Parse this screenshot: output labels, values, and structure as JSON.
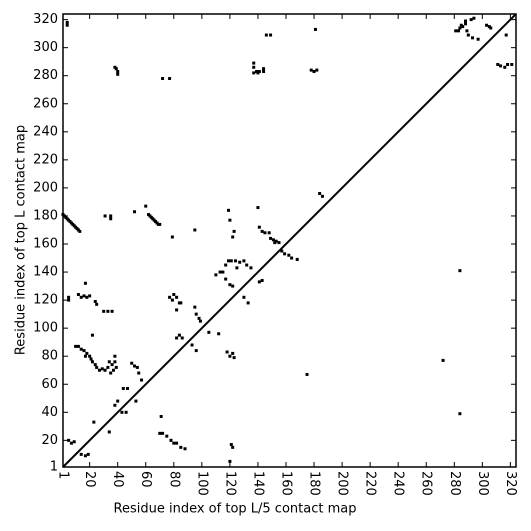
{
  "chart_data": {
    "type": "scatter",
    "xlabel": "Residue index of top L/5 contact map",
    "ylabel": "Residue index of top L contact map",
    "color": "#000000",
    "x": [
      4,
      4,
      1,
      2,
      3,
      4,
      5,
      6,
      7,
      8,
      9,
      10,
      11,
      12,
      13,
      38,
      39,
      40,
      40,
      72,
      77,
      137,
      137,
      139,
      141,
      144,
      144,
      146,
      149,
      178,
      182,
      180,
      181,
      137,
      140,
      281,
      283,
      284,
      285,
      286,
      288,
      288,
      289,
      290,
      292,
      294,
      303,
      305,
      306,
      293,
      297,
      311,
      313,
      316,
      318,
      321,
      317,
      184,
      186,
      52,
      60,
      62,
      63,
      64,
      65,
      66,
      67,
      68,
      69,
      70,
      31,
      35,
      35,
      79,
      95,
      119,
      120,
      123,
      122,
      140,
      141,
      143,
      145,
      148,
      149,
      151,
      152,
      153,
      155,
      159,
      162,
      164,
      168,
      157,
      5,
      5,
      12,
      14,
      16,
      18,
      20,
      24,
      25,
      17,
      10,
      12,
      14,
      16,
      17,
      18,
      20,
      21,
      22,
      24,
      25,
      27,
      29,
      31,
      33,
      35,
      37,
      39,
      38,
      38,
      34,
      36,
      30,
      33,
      36,
      22,
      40,
      38,
      43,
      46,
      44,
      47,
      50,
      52,
      54,
      55,
      57,
      53,
      5,
      7,
      9,
      14,
      17,
      19,
      23,
      34,
      71,
      70,
      72,
      75,
      78,
      80,
      82,
      85,
      88,
      77,
      79,
      82,
      84,
      82,
      85,
      80,
      84,
      86,
      82,
      95,
      96,
      98,
      99,
      93,
      96,
      105,
      112,
      110,
      113,
      115,
      117,
      119,
      121,
      124,
      127,
      125,
      130,
      132,
      135,
      117,
      120,
      122,
      130,
      133,
      118,
      120,
      122,
      123,
      121,
      122,
      120,
      141,
      143,
      175,
      272,
      284,
      284
    ],
    "y": [
      318,
      316,
      181,
      180,
      179,
      178,
      177,
      176,
      175,
      174,
      173,
      172,
      171,
      170,
      169,
      286,
      285,
      283,
      281,
      278,
      278,
      289,
      286,
      283,
      283,
      285,
      283,
      309,
      309,
      284,
      284,
      283,
      313,
      282,
      282,
      312,
      312,
      314,
      316,
      315,
      317,
      319,
      312,
      309,
      320,
      321,
      316,
      315,
      314,
      307,
      306,
      288,
      287,
      286,
      288,
      288,
      309,
      196,
      194,
      183,
      187,
      181,
      180,
      179,
      178,
      177,
      176,
      175,
      174,
      174,
      180,
      180,
      178,
      165,
      170,
      184,
      177,
      169,
      165,
      186,
      172,
      169,
      168,
      168,
      164,
      163,
      161,
      162,
      161,
      153,
      152,
      150,
      149,
      155,
      122,
      120,
      124,
      122,
      123,
      122,
      123,
      119,
      117,
      132,
      87,
      87,
      85,
      84,
      80,
      82,
      80,
      78,
      76,
      74,
      72,
      70,
      71,
      70,
      72,
      68,
      70,
      72,
      76,
      80,
      76,
      74,
      112,
      112,
      112,
      95,
      48,
      45,
      40,
      40,
      57,
      57,
      75,
      73,
      72,
      68,
      63,
      48,
      20,
      18,
      19,
      10,
      9,
      10,
      33,
      26,
      37,
      25,
      25,
      23,
      20,
      18,
      18,
      15,
      14,
      122,
      120,
      122,
      118,
      113,
      118,
      124,
      95,
      93,
      93,
      115,
      110,
      107,
      105,
      88,
      84,
      97,
      96,
      138,
      140,
      140,
      145,
      148,
      148,
      148,
      147,
      143,
      148,
      145,
      143,
      135,
      131,
      130,
      122,
      118,
      83,
      80,
      82,
      79,
      17,
      15,
      5,
      133,
      134,
      67,
      77,
      141,
      39
    ],
    "xlim": [
      1,
      324
    ],
    "ylim": [
      1,
      324
    ],
    "xticks": [
      1,
      20,
      40,
      60,
      80,
      100,
      120,
      140,
      160,
      180,
      200,
      220,
      240,
      260,
      280,
      300,
      320
    ],
    "yticks": [
      1,
      20,
      40,
      60,
      80,
      100,
      120,
      140,
      160,
      180,
      200,
      220,
      240,
      260,
      280,
      300,
      320
    ]
  }
}
